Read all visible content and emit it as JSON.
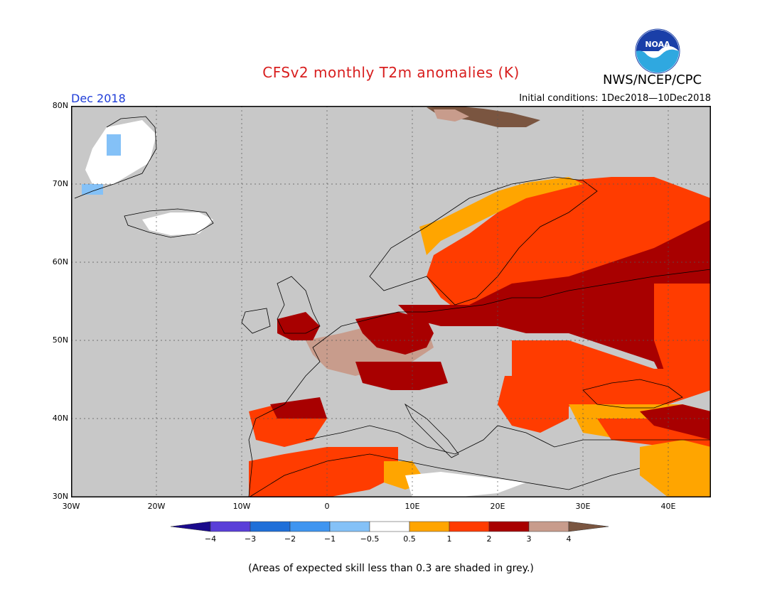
{
  "title": "CFSv2 monthly T2m anomalies (K)",
  "agency": "NWS/NCEP/CPC",
  "month": "Dec 2018",
  "initial_conditions": "Initial conditions: 1Dec2018—10Dec2018",
  "footnote": "(Areas of expected skill less than 0.3 are shaded in grey.)",
  "logo_text": "NOAA",
  "lat_labels": [
    "80N",
    "70N",
    "60N",
    "50N",
    "40N",
    "30N"
  ],
  "lon_labels": [
    "30W",
    "20W",
    "10W",
    "0",
    "10E",
    "20E",
    "30E",
    "40E"
  ],
  "colorbar": {
    "ticks": [
      "−4",
      "−3",
      "−2",
      "−1",
      "−0.5",
      "0.5",
      "1",
      "2",
      "3",
      "4"
    ],
    "colors": [
      "#1a0a8c",
      "#5a3fd8",
      "#1f6fd8",
      "#3f95f0",
      "#84c1f7",
      "#ffffff",
      "#ffa500",
      "#ff3c00",
      "#a80000",
      "#c89c8c",
      "#7a5540"
    ]
  },
  "colors": {
    "grey_skill_mask": "#c8c8c8",
    "title": "#d81e1e",
    "month": "#1e3cd8"
  }
}
